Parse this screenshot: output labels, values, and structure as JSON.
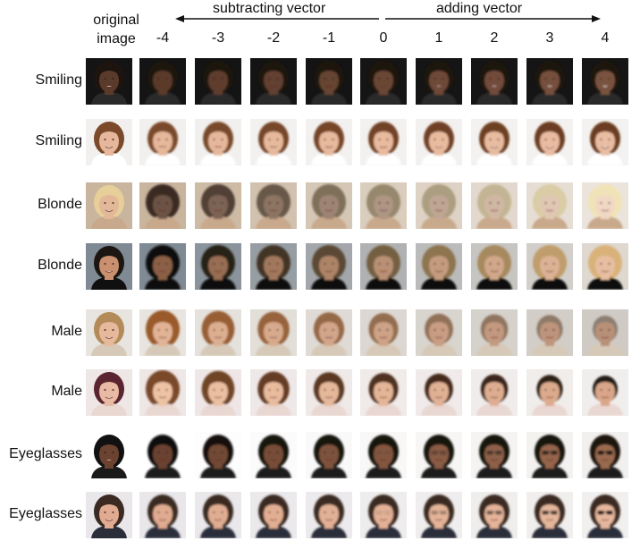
{
  "header": {
    "original_label_line1": "original",
    "original_label_line2": "image",
    "subtract_label": "subtracting vector",
    "add_label": "adding vector"
  },
  "columns": [
    "-4",
    "-3",
    "-2",
    "-1",
    "0",
    "1",
    "2",
    "3",
    "4"
  ],
  "rows": [
    {
      "label": "Smiling",
      "bg": "#141414",
      "skin": "#5a3b2b",
      "hair": "#1d1410",
      "cloth": "#2a2a2a",
      "to_skin": "#7a5240",
      "to_hair": "#1d1410",
      "to_bg": "#151515"
    },
    {
      "label": "Smiling",
      "bg": "#f2f0ee",
      "skin": "#e6b79a",
      "hair": "#7a4a2b",
      "cloth": "#ffffff",
      "to_skin": "#e9bda2",
      "to_hair": "#6a3c22",
      "to_bg": "#f4f2f0"
    },
    {
      "label": "Blonde",
      "bg": "#c9b59e",
      "skin": "#e3b899",
      "hair": "#e7cf9a",
      "cloth": "#c9a98b",
      "from_hair": "#3a2a22",
      "from_skin": "#6c5244",
      "to_hair": "#f1e3b8",
      "to_skin": "#f1d8c4",
      "to_bg": "#eae4dc"
    },
    {
      "label": "Blonde",
      "bg": "#7f8a94",
      "skin": "#c98f6e",
      "hair": "#1c1612",
      "cloth": "#101010",
      "from_hair": "#0f0c0a",
      "from_skin": "#8b6147",
      "to_hair": "#d9b27a",
      "to_skin": "#e7bea0",
      "to_bg": "#ded8d0"
    },
    {
      "label": "Male",
      "bg": "#e8e4df",
      "skin": "#e7b99c",
      "hair": "#b28b59",
      "cloth": "#d7c9b8",
      "from_hair": "#9a5a2c",
      "from_skin": "#e2b394",
      "to_hair": "#8c7f72",
      "to_skin": "#b89078",
      "to_bg": "#cfcac4"
    },
    {
      "label": "Male",
      "bg": "#efe6e6",
      "skin": "#e8b9a3",
      "hair": "#5a2430",
      "cloth": "#e9d7d2",
      "from_hair": "#7a4a2a",
      "from_skin": "#eec3a4",
      "to_hair": "#241a16",
      "to_skin": "#d9a68a",
      "to_bg": "#f0eeec"
    },
    {
      "label": "Eyeglasses",
      "bg": "#ffffff",
      "skin": "#6b4330",
      "hair": "#111111",
      "cloth": "#1a1a1a",
      "to_skin": "#9a6a50",
      "to_hair": "#1a1410",
      "to_bg": "#f2f0ee",
      "glasses": true
    },
    {
      "label": "Eyeglasses",
      "bg": "#e9e7ea",
      "skin": "#e0ab90",
      "hair": "#3a2a22",
      "cloth": "#2a2e3a",
      "to_skin": "#e6b79c",
      "to_hair": "#3a2a22",
      "to_bg": "#f2f0ee",
      "glasses": true
    }
  ]
}
